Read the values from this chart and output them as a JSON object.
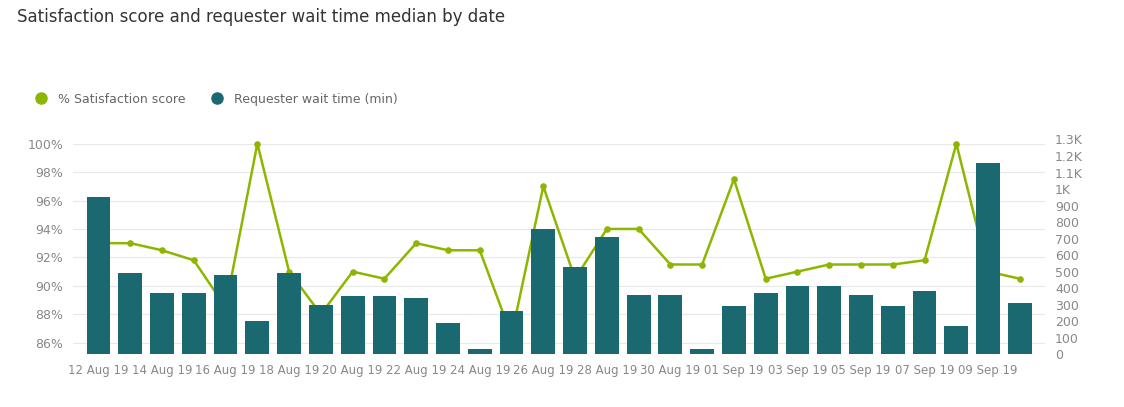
{
  "title": "Satisfaction score and requester wait time median by date",
  "x_tick_labels": [
    "12 Aug 19",
    "14 Aug 19",
    "16 Aug 19",
    "18 Aug 19",
    "20 Aug 19",
    "22 Aug 19",
    "24 Aug 19",
    "26 Aug 19",
    "28 Aug 19",
    "30 Aug 19",
    "01 Sep 19",
    "03 Sep 19",
    "05 Sep 19",
    "07 Sep 19",
    "09 Sep 19"
  ],
  "x_tick_positions": [
    0,
    2,
    4,
    6,
    8,
    10,
    12,
    14,
    16,
    18,
    20,
    22,
    24,
    26,
    28
  ],
  "bar_values": [
    950,
    490,
    370,
    370,
    480,
    200,
    490,
    300,
    350,
    350,
    340,
    190,
    30,
    260,
    760,
    530,
    710,
    360,
    360,
    30,
    290,
    370,
    410,
    410,
    360,
    290,
    380,
    170,
    1160,
    310
  ],
  "line_values": [
    93.0,
    93.0,
    92.5,
    91.8,
    88.5,
    100.0,
    91.0,
    88.0,
    91.0,
    90.5,
    93.0,
    92.5,
    92.5,
    86.5,
    97.0,
    90.5,
    94.0,
    94.0,
    91.5,
    91.5,
    97.5,
    90.5,
    91.0,
    91.5,
    91.5,
    91.5,
    91.8,
    100.0,
    91.0,
    90.5
  ],
  "bar_color": "#1a6870",
  "line_color": "#8db600",
  "background_color": "#ffffff",
  "title_fontsize": 12,
  "legend_satisfaction_label": "% Satisfaction score",
  "legend_wait_label": "Requester wait time (min)",
  "left_yticks": [
    86,
    88,
    90,
    92,
    94,
    96,
    98,
    100
  ],
  "right_yticks": [
    0,
    100,
    200,
    300,
    400,
    500,
    600,
    700,
    800,
    900,
    1000,
    1100,
    1200,
    1300
  ],
  "right_ytick_labels": [
    "0",
    "100",
    "200",
    "300",
    "400",
    "500",
    "600",
    "700",
    "800",
    "900",
    "1K",
    "1.1K",
    "1.2K",
    "1.3K"
  ]
}
